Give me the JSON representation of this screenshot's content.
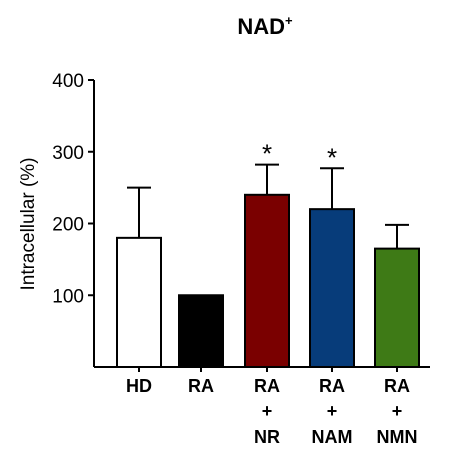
{
  "chart_data": {
    "type": "bar",
    "title": "NAD",
    "title_superscript": "+",
    "xlabel": "",
    "ylabel": "Intracellular (%)",
    "ylim": [
      0,
      400
    ],
    "yticks": [
      "100",
      "200",
      "300",
      "400"
    ],
    "grid": false,
    "categories": [
      [
        "HD"
      ],
      [
        "RA"
      ],
      [
        "RA",
        "+",
        "NR"
      ],
      [
        "RA",
        "+",
        "NAM"
      ],
      [
        "RA",
        "+",
        "NMN"
      ]
    ],
    "values": [
      180,
      100,
      240,
      220,
      165
    ],
    "error_upper": [
      70,
      0,
      42,
      57,
      33
    ],
    "annotations": [
      "",
      "",
      "*",
      "*",
      ""
    ],
    "colors": [
      "#ffffff",
      "#000000",
      "#7a0000",
      "#073c7a",
      "#3e7a16"
    ]
  }
}
